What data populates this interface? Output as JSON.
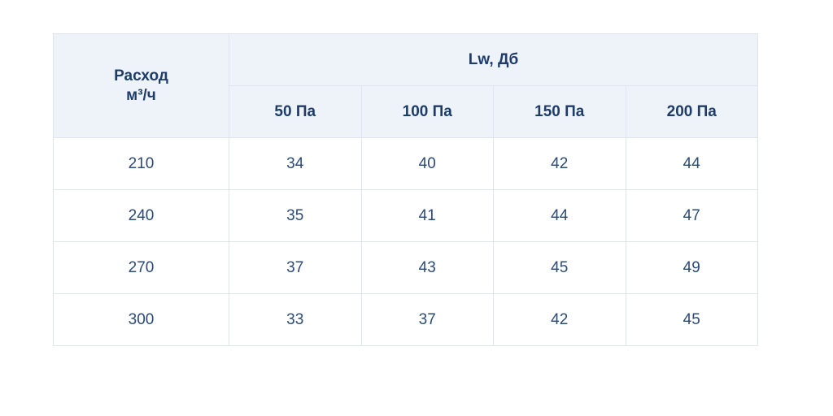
{
  "table": {
    "corner_header": "Расход м³/ч",
    "group_header": "Lw, Дб",
    "columns": [
      "50 Па",
      "100 Па",
      "150 Па",
      "200 Па"
    ],
    "rows": [
      [
        210,
        34,
        40,
        42,
        44
      ],
      [
        240,
        35,
        41,
        44,
        47
      ],
      [
        270,
        37,
        43,
        45,
        49
      ],
      [
        300,
        33,
        37,
        42,
        45
      ]
    ]
  }
}
